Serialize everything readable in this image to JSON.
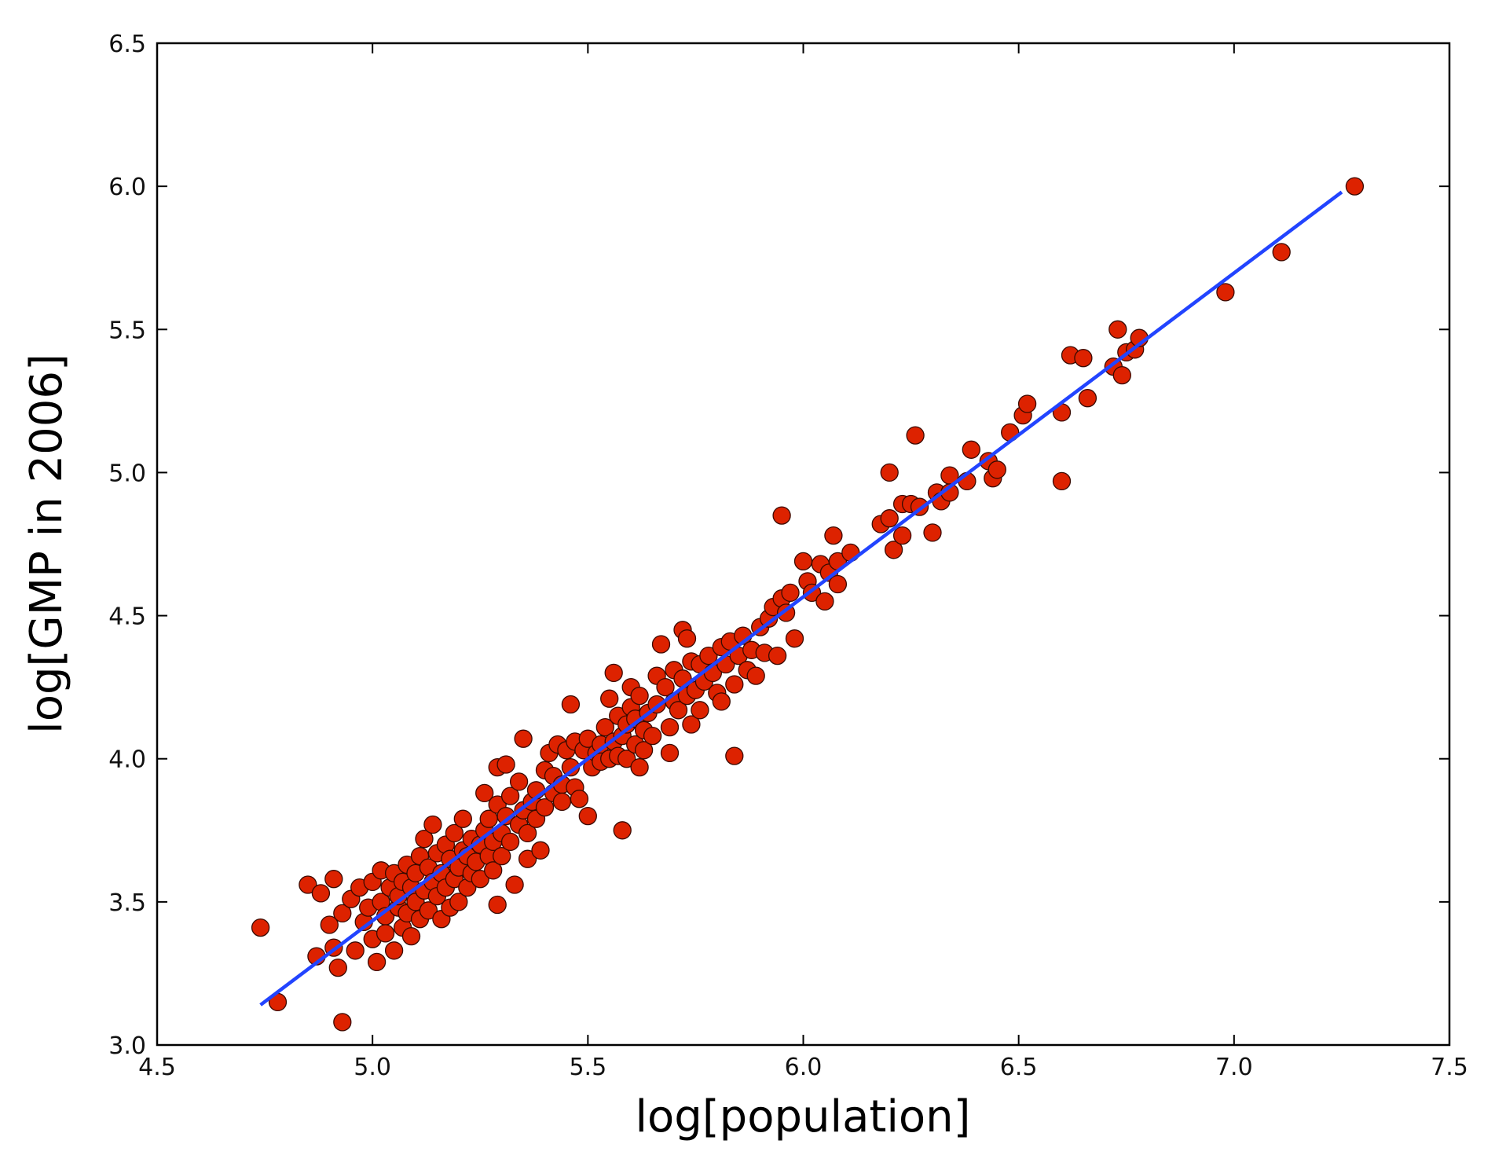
{
  "chart_data": {
    "type": "scatter",
    "title": "",
    "xlabel": "log[population]",
    "ylabel": "log[GMP in 2006]",
    "xlim": [
      4.5,
      7.5
    ],
    "ylim": [
      3.0,
      6.5
    ],
    "xticks": [
      "4.5",
      "5.0",
      "5.5",
      "6.0",
      "6.5",
      "7.0",
      "7.5"
    ],
    "yticks": [
      "3.0",
      "3.5",
      "4.0",
      "4.5",
      "5.0",
      "5.5",
      "6.0",
      "6.5"
    ],
    "grid": false,
    "legend": "none",
    "colors": {
      "points": "#dd2200",
      "point_edge": "#3a0a00",
      "fit_line": "#2244ff"
    },
    "series": [
      {
        "type": "scatter",
        "points": [
          [
            4.74,
            3.41
          ],
          [
            4.78,
            3.15
          ],
          [
            4.85,
            3.56
          ],
          [
            4.87,
            3.31
          ],
          [
            4.88,
            3.53
          ],
          [
            4.9,
            3.42
          ],
          [
            4.91,
            3.58
          ],
          [
            4.91,
            3.34
          ],
          [
            4.92,
            3.27
          ],
          [
            4.93,
            3.08
          ],
          [
            4.93,
            3.46
          ],
          [
            4.95,
            3.51
          ],
          [
            4.96,
            3.33
          ],
          [
            4.97,
            3.55
          ],
          [
            4.98,
            3.43
          ],
          [
            4.99,
            3.48
          ],
          [
            5.0,
            3.57
          ],
          [
            5.0,
            3.37
          ],
          [
            5.01,
            3.29
          ],
          [
            5.02,
            3.61
          ],
          [
            5.02,
            3.5
          ],
          [
            5.03,
            3.45
          ],
          [
            5.03,
            3.39
          ],
          [
            5.04,
            3.55
          ],
          [
            5.05,
            3.6
          ],
          [
            5.05,
            3.33
          ],
          [
            5.06,
            3.48
          ],
          [
            5.06,
            3.52
          ],
          [
            5.07,
            3.41
          ],
          [
            5.07,
            3.57
          ],
          [
            5.08,
            3.63
          ],
          [
            5.08,
            3.46
          ],
          [
            5.09,
            3.38
          ],
          [
            5.09,
            3.55
          ],
          [
            5.1,
            3.5
          ],
          [
            5.1,
            3.6
          ],
          [
            5.11,
            3.44
          ],
          [
            5.11,
            3.66
          ],
          [
            5.12,
            3.54
          ],
          [
            5.12,
            3.72
          ],
          [
            5.13,
            3.47
          ],
          [
            5.13,
            3.62
          ],
          [
            5.14,
            3.57
          ],
          [
            5.14,
            3.77
          ],
          [
            5.15,
            3.52
          ],
          [
            5.15,
            3.67
          ],
          [
            5.16,
            3.44
          ],
          [
            5.16,
            3.6
          ],
          [
            5.17,
            3.7
          ],
          [
            5.17,
            3.55
          ],
          [
            5.18,
            3.48
          ],
          [
            5.18,
            3.65
          ],
          [
            5.19,
            3.58
          ],
          [
            5.19,
            3.74
          ],
          [
            5.2,
            3.62
          ],
          [
            5.2,
            3.5
          ],
          [
            5.21,
            3.68
          ],
          [
            5.21,
            3.79
          ],
          [
            5.22,
            3.55
          ],
          [
            5.22,
            3.66
          ],
          [
            5.23,
            3.72
          ],
          [
            5.23,
            3.6
          ],
          [
            5.24,
            3.64
          ],
          [
            5.25,
            3.7
          ],
          [
            5.25,
            3.58
          ],
          [
            5.26,
            3.75
          ],
          [
            5.26,
            3.88
          ],
          [
            5.27,
            3.66
          ],
          [
            5.27,
            3.79
          ],
          [
            5.28,
            3.71
          ],
          [
            5.28,
            3.61
          ],
          [
            5.29,
            3.97
          ],
          [
            5.29,
            3.84
          ],
          [
            5.29,
            3.49
          ],
          [
            5.3,
            3.74
          ],
          [
            5.3,
            3.66
          ],
          [
            5.31,
            3.8
          ],
          [
            5.31,
            3.98
          ],
          [
            5.32,
            3.71
          ],
          [
            5.32,
            3.87
          ],
          [
            5.33,
            3.56
          ],
          [
            5.34,
            3.77
          ],
          [
            5.34,
            3.92
          ],
          [
            5.35,
            3.82
          ],
          [
            5.35,
            4.07
          ],
          [
            5.36,
            3.74
          ],
          [
            5.36,
            3.65
          ],
          [
            5.37,
            3.85
          ],
          [
            5.38,
            3.79
          ],
          [
            5.38,
            3.89
          ],
          [
            5.39,
            3.68
          ],
          [
            5.4,
            3.96
          ],
          [
            5.4,
            3.83
          ],
          [
            5.41,
            4.02
          ],
          [
            5.42,
            3.88
          ],
          [
            5.42,
            3.94
          ],
          [
            5.43,
            4.05
          ],
          [
            5.44,
            3.91
          ],
          [
            5.44,
            3.85
          ],
          [
            5.45,
            4.03
          ],
          [
            5.46,
            3.97
          ],
          [
            5.46,
            4.19
          ],
          [
            5.47,
            3.9
          ],
          [
            5.47,
            4.06
          ],
          [
            5.48,
            3.86
          ],
          [
            5.49,
            4.03
          ],
          [
            5.5,
            4.07
          ],
          [
            5.5,
            3.8
          ],
          [
            5.51,
            3.97
          ],
          [
            5.52,
            4.02
          ],
          [
            5.53,
            4.05
          ],
          [
            5.53,
            3.99
          ],
          [
            5.54,
            4.11
          ],
          [
            5.55,
            4.0
          ],
          [
            5.55,
            4.21
          ],
          [
            5.56,
            4.06
          ],
          [
            5.56,
            4.3
          ],
          [
            5.57,
            4.01
          ],
          [
            5.57,
            4.15
          ],
          [
            5.58,
            4.08
          ],
          [
            5.58,
            3.75
          ],
          [
            5.59,
            4.12
          ],
          [
            5.59,
            4.0
          ],
          [
            5.6,
            4.18
          ],
          [
            5.6,
            4.25
          ],
          [
            5.61,
            4.05
          ],
          [
            5.61,
            4.14
          ],
          [
            5.62,
            3.97
          ],
          [
            5.62,
            4.22
          ],
          [
            5.63,
            4.1
          ],
          [
            5.63,
            4.03
          ],
          [
            5.64,
            4.16
          ],
          [
            5.65,
            4.08
          ],
          [
            5.66,
            4.29
          ],
          [
            5.66,
            4.19
          ],
          [
            5.67,
            4.4
          ],
          [
            5.68,
            4.25
          ],
          [
            5.69,
            4.11
          ],
          [
            5.69,
            4.02
          ],
          [
            5.7,
            4.2
          ],
          [
            5.7,
            4.31
          ],
          [
            5.71,
            4.17
          ],
          [
            5.72,
            4.28
          ],
          [
            5.72,
            4.45
          ],
          [
            5.73,
            4.22
          ],
          [
            5.73,
            4.42
          ],
          [
            5.74,
            4.34
          ],
          [
            5.74,
            4.12
          ],
          [
            5.75,
            4.24
          ],
          [
            5.76,
            4.17
          ],
          [
            5.76,
            4.33
          ],
          [
            5.77,
            4.27
          ],
          [
            5.78,
            4.36
          ],
          [
            5.79,
            4.3
          ],
          [
            5.8,
            4.23
          ],
          [
            5.81,
            4.39
          ],
          [
            5.81,
            4.2
          ],
          [
            5.82,
            4.33
          ],
          [
            5.83,
            4.41
          ],
          [
            5.84,
            4.26
          ],
          [
            5.84,
            4.01
          ],
          [
            5.85,
            4.36
          ],
          [
            5.86,
            4.43
          ],
          [
            5.87,
            4.31
          ],
          [
            5.88,
            4.38
          ],
          [
            5.89,
            4.29
          ],
          [
            5.9,
            4.46
          ],
          [
            5.91,
            4.37
          ],
          [
            5.92,
            4.49
          ],
          [
            5.93,
            4.53
          ],
          [
            5.94,
            4.36
          ],
          [
            5.95,
            4.56
          ],
          [
            5.95,
            4.85
          ],
          [
            5.96,
            4.51
          ],
          [
            5.97,
            4.58
          ],
          [
            5.98,
            4.42
          ],
          [
            6.0,
            4.69
          ],
          [
            6.01,
            4.62
          ],
          [
            6.02,
            4.58
          ],
          [
            6.04,
            4.68
          ],
          [
            6.05,
            4.55
          ],
          [
            6.06,
            4.65
          ],
          [
            6.07,
            4.78
          ],
          [
            6.08,
            4.61
          ],
          [
            6.08,
            4.69
          ],
          [
            6.11,
            4.72
          ],
          [
            6.18,
            4.82
          ],
          [
            6.2,
            4.84
          ],
          [
            6.2,
            5.0
          ],
          [
            6.21,
            4.73
          ],
          [
            6.23,
            4.78
          ],
          [
            6.23,
            4.89
          ],
          [
            6.25,
            4.89
          ],
          [
            6.26,
            5.13
          ],
          [
            6.27,
            4.88
          ],
          [
            6.3,
            4.79
          ],
          [
            6.31,
            4.93
          ],
          [
            6.32,
            4.9
          ],
          [
            6.34,
            4.99
          ],
          [
            6.34,
            4.93
          ],
          [
            6.38,
            4.97
          ],
          [
            6.39,
            5.08
          ],
          [
            6.43,
            5.04
          ],
          [
            6.44,
            4.98
          ],
          [
            6.45,
            5.01
          ],
          [
            6.48,
            5.14
          ],
          [
            6.51,
            5.2
          ],
          [
            6.52,
            5.24
          ],
          [
            6.6,
            5.21
          ],
          [
            6.6,
            4.97
          ],
          [
            6.62,
            5.41
          ],
          [
            6.65,
            5.4
          ],
          [
            6.66,
            5.26
          ],
          [
            6.72,
            5.37
          ],
          [
            6.73,
            5.5
          ],
          [
            6.74,
            5.34
          ],
          [
            6.75,
            5.42
          ],
          [
            6.77,
            5.43
          ],
          [
            6.78,
            5.47
          ],
          [
            6.98,
            5.63
          ],
          [
            7.11,
            5.77
          ],
          [
            7.28,
            6.0
          ]
        ]
      },
      {
        "type": "line",
        "x": [
          4.74,
          7.25
        ],
        "y": [
          3.14,
          5.98
        ]
      }
    ]
  }
}
